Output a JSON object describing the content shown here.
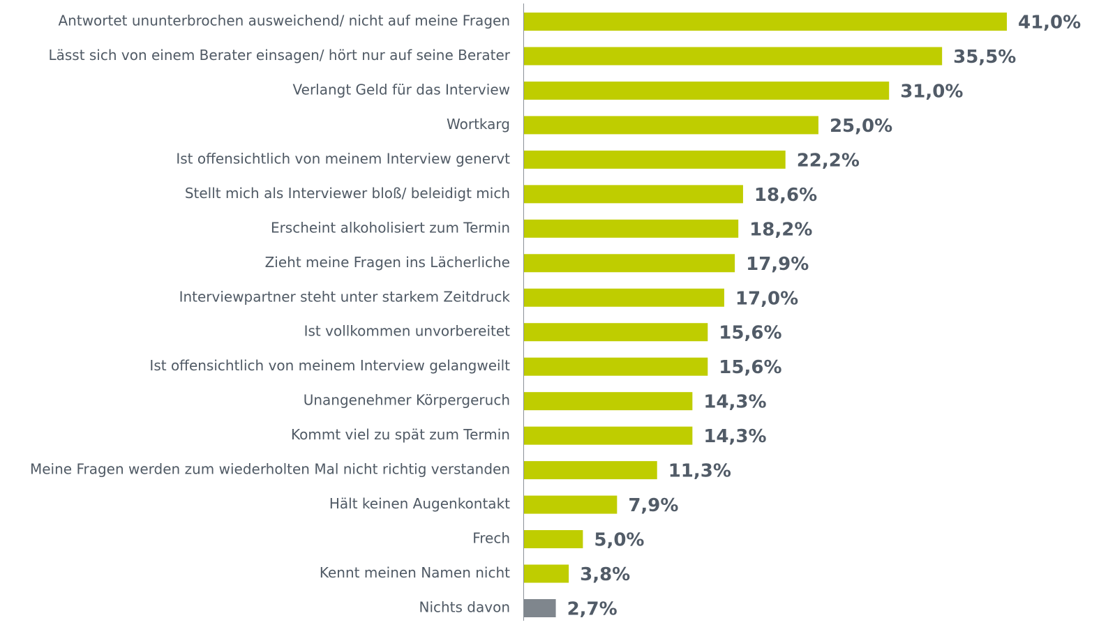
{
  "chart_data": {
    "type": "barh",
    "categories": [
      "Antwortet ununterbrochen ausweichend/ nicht auf meine Fragen",
      "Lässt sich von einem Berater einsagen/ hört nur auf seine Berater",
      "Verlangt Geld für das Interview",
      "Wortkarg",
      "Ist offensichtlich von meinem Interview genervt",
      "Stellt mich als Interviewer bloß/ beleidigt mich",
      "Erscheint alkoholisiert zum Termin",
      "Zieht meine Fragen ins Lächerliche",
      "Interviewpartner steht unter starkem Zeitdruck",
      "Ist vollkommen unvorbereitet",
      "Ist offensichtlich von meinem Interview gelangweilt",
      "Unangenehmer Körpergeruch",
      "Kommt viel zu spät zum Termin",
      "Meine Fragen werden zum wiederholten Mal nicht richtig verstanden",
      "Hält keinen Augenkontakt",
      "Frech",
      "Kennt meinen Namen nicht",
      "Nichts davon"
    ],
    "values": [
      41.0,
      35.5,
      31.0,
      25.0,
      22.2,
      18.6,
      18.2,
      17.9,
      17.0,
      15.6,
      15.6,
      14.3,
      14.3,
      11.3,
      7.9,
      5.0,
      3.8,
      2.7
    ],
    "value_labels": [
      "41,0%",
      "35,5%",
      "31,0%",
      "25,0%",
      "22,2%",
      "18,6%",
      "18,2%",
      "17,9%",
      "17,0%",
      "15,6%",
      "15,6%",
      "14,3%",
      "14,3%",
      "11,3%",
      "7,9%",
      "5,0%",
      "3,8%",
      "2,7%"
    ],
    "colors": [
      "#bfcd00",
      "#bfcd00",
      "#bfcd00",
      "#bfcd00",
      "#bfcd00",
      "#bfcd00",
      "#bfcd00",
      "#bfcd00",
      "#bfcd00",
      "#bfcd00",
      "#bfcd00",
      "#bfcd00",
      "#bfcd00",
      "#bfcd00",
      "#bfcd00",
      "#bfcd00",
      "#bfcd00",
      "#7f868d"
    ]
  }
}
